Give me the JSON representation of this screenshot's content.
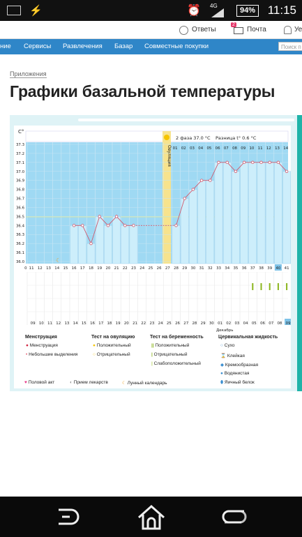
{
  "status": {
    "time": "11:15",
    "battery": "94%",
    "network": "4G"
  },
  "topnav": {
    "answers": "Ответы",
    "mail": "Почта",
    "mail_badge": "2",
    "more": "Уе"
  },
  "menu": {
    "items": [
      "ние",
      "Сервисы",
      "Развлечения",
      "Базар",
      "Совместные покупки"
    ],
    "search_placeholder": "Поиск п"
  },
  "breadcrumb": "Приложения",
  "page_title": "Графики базальной температуры",
  "chart": {
    "unit": "C°",
    "phase_label": "2 фаза 37.0 °C",
    "diff_label": "Разница t° 0.6 °C",
    "ovulation_label": "Овуляция",
    "month_label": "Декабрь",
    "y_ticks": [
      "37.3",
      "37.2",
      "37.1",
      "37.0",
      "36.9",
      "36.8",
      "36.7",
      "36.6",
      "36.5",
      "36.4",
      "36.3",
      "36.2",
      "36.1",
      "36.0"
    ],
    "cycle_days": [
      "01",
      "02",
      "03",
      "04",
      "05",
      "06",
      "07",
      "08",
      "09",
      "10",
      "11",
      "12",
      "13",
      "14"
    ],
    "bottom_days": [
      "0",
      "11",
      "12",
      "13",
      "14",
      "15",
      "16",
      "17",
      "18",
      "19",
      "20",
      "21",
      "22",
      "23",
      "24",
      "25",
      "26",
      "27",
      "28",
      "29",
      "30",
      "31",
      "32",
      "33",
      "34",
      "35",
      "36",
      "37",
      "38",
      "39",
      "40",
      "41"
    ],
    "dates": [
      "09",
      "10",
      "11",
      "12",
      "13",
      "14",
      "15",
      "16",
      "17",
      "18",
      "19",
      "20",
      "21",
      "22",
      "23",
      "24",
      "25",
      "26",
      "27",
      "28",
      "29",
      "30",
      "01",
      "02",
      "03",
      "04",
      "05",
      "06",
      "07",
      "08",
      "09"
    ]
  },
  "chart_data": {
    "type": "line",
    "xlabel": "",
    "ylabel": "C°",
    "ylim": [
      36.0,
      37.3
    ],
    "x": [
      15,
      16,
      17,
      18,
      19,
      20,
      21,
      22,
      27,
      28,
      29,
      30,
      31,
      32,
      33,
      34,
      35,
      36,
      37,
      38,
      39,
      40
    ],
    "y": [
      36.4,
      36.4,
      36.2,
      36.5,
      36.4,
      36.5,
      36.4,
      36.4,
      36.4,
      36.7,
      36.8,
      36.9,
      36.9,
      37.1,
      37.1,
      37.0,
      37.1,
      37.1,
      37.1,
      37.1,
      37.1,
      37.0
    ],
    "coverline": 36.5,
    "ovulation_day": 27
  },
  "legend": {
    "menstruation_title": "Менструация",
    "menstruation": "Менструация",
    "spotting": "Небольшие выделения",
    "ovul_title": "Тест на овуляцию",
    "ovul_pos": "Положительный",
    "ovul_neg": "Отрицательный",
    "preg_title": "Тест на беременность",
    "preg_pos": "Положительный",
    "preg_neg": "Отрицательный",
    "preg_weak": "Слабоположительный",
    "mucus_title": "Цервикальная жидкость",
    "dry": "Сухо",
    "sticky": "Клейкая",
    "creamy": "Кремообразная",
    "watery": "Водянистая",
    "eggwhite": "Яичный белок",
    "sex": "Половой акт",
    "meds": "Прием лекарств",
    "lunar": "Лунный календарь"
  },
  "colors": {
    "accent": "#2f86c8",
    "chart_blue": "#9fd9f3",
    "ovulation": "#f7e38d",
    "line": "#d05a6e"
  }
}
